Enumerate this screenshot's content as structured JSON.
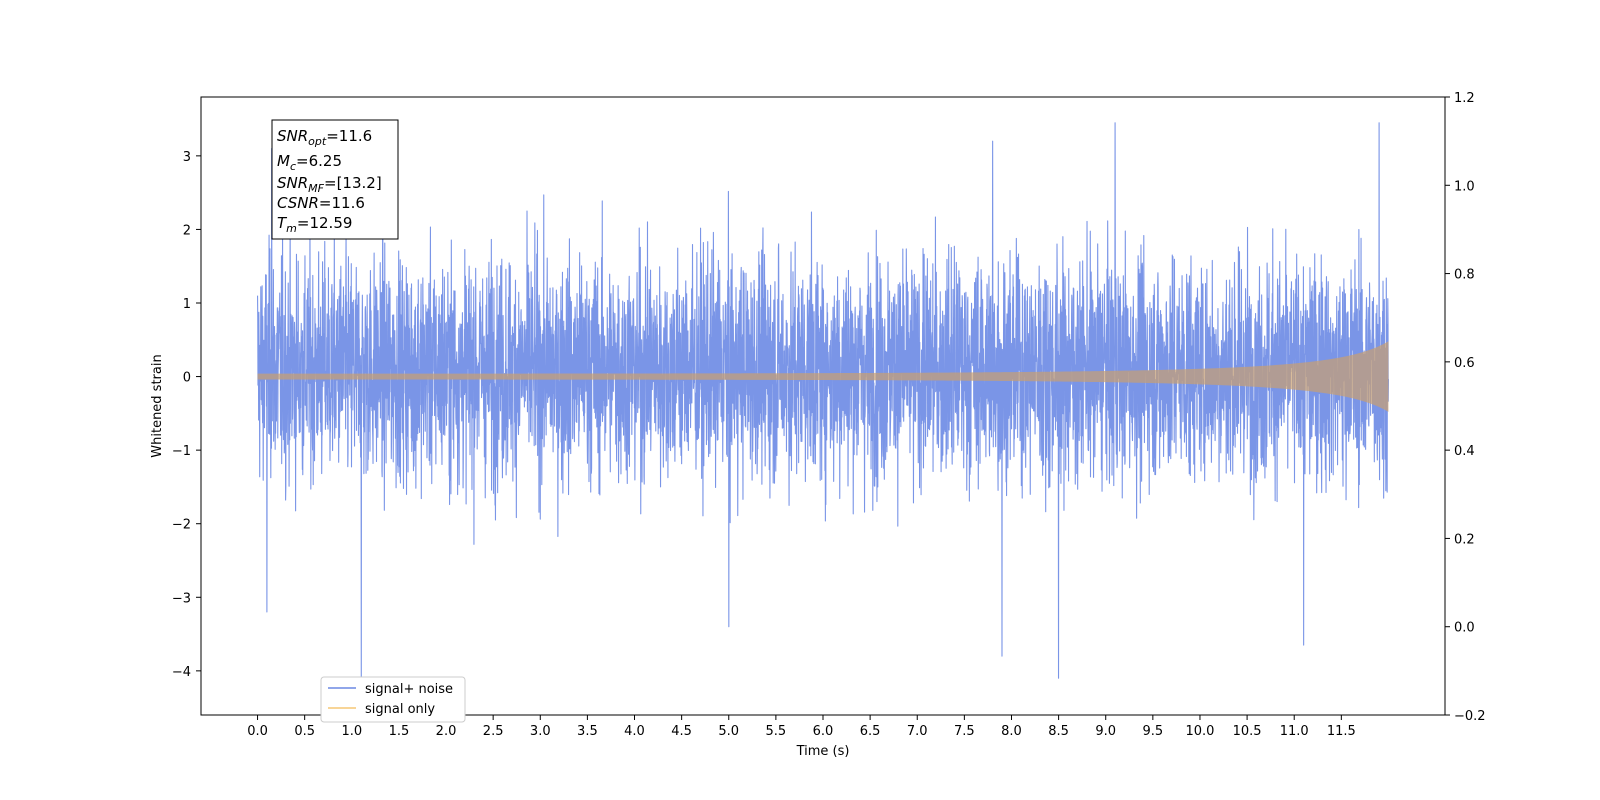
{
  "chart_data": {
    "type": "line",
    "xlabel": "Time (s)",
    "ylabel": "Whitened strain",
    "xlim": [
      -0.6,
      12.6
    ],
    "ylim": [
      -4.6,
      3.8
    ],
    "y2lim": [
      -0.2,
      1.2
    ],
    "x_ticks": [
      "0.0",
      "0.5",
      "1.0",
      "1.5",
      "2.0",
      "2.5",
      "3.0",
      "3.5",
      "4.0",
      "4.5",
      "5.0",
      "5.5",
      "6.0",
      "6.5",
      "7.0",
      "7.5",
      "8.0",
      "8.5",
      "9.0",
      "9.5",
      "10.0",
      "10.5",
      "11.0",
      "11.5"
    ],
    "y_ticks": [
      "3",
      "2",
      "1",
      "0",
      "−1",
      "−2",
      "−3",
      "−4"
    ],
    "y2_ticks": [
      "1.2",
      "1.0",
      "0.8",
      "0.6",
      "0.4",
      "0.2",
      "0.0",
      "−0.2"
    ],
    "legend": {
      "placement": "lower-left",
      "entries": [
        {
          "label": "signal+ noise",
          "color": "#6c89e4"
        },
        {
          "label": "signal only",
          "color": "#f5c775"
        }
      ]
    },
    "annotation": {
      "snr_opt": {
        "base": "SNR",
        "sub": "opt",
        "value": "=11.6"
      },
      "mc": {
        "base": "M",
        "sub": "c",
        "value": "=6.25"
      },
      "snr_mf": {
        "base": "SNR",
        "sub": "MF",
        "value": "=[13.2]"
      },
      "csnr": {
        "base": "CSNR",
        "sub": "",
        "value": "=11.6"
      },
      "tm": {
        "base": "T",
        "sub": "m",
        "value": "=12.59"
      }
    },
    "series": [
      {
        "name": "signal+ noise",
        "color": "#6c89e4",
        "t_range": [
          0.0,
          12.0
        ],
        "envelope_typical": [
          -1.6,
          1.8
        ],
        "extremes": [
          {
            "x": 0.1,
            "y": -3.2
          },
          {
            "x": 0.15,
            "y": 3.1
          },
          {
            "x": 1.1,
            "y": -4.1
          },
          {
            "x": 5.0,
            "y": -3.4
          },
          {
            "x": 7.8,
            "y": 3.2
          },
          {
            "x": 7.9,
            "y": -3.8
          },
          {
            "x": 8.5,
            "y": -4.1
          },
          {
            "x": 9.1,
            "y": 3.45
          },
          {
            "x": 11.1,
            "y": -3.65
          },
          {
            "x": 11.9,
            "y": 3.45
          }
        ]
      },
      {
        "name": "signal only",
        "color": "#f5c775",
        "t_range": [
          0.0,
          12.0
        ],
        "amplitude_start": 0.04,
        "amplitude_end": 0.48,
        "merger_time": 12.59
      }
    ]
  }
}
